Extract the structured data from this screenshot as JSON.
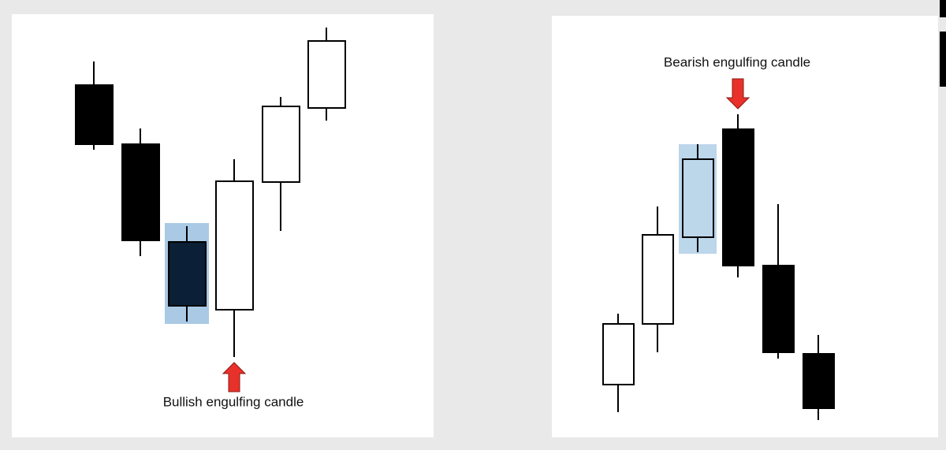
{
  "bullish_panel": {
    "label": "Bullish engulfing candle"
  },
  "bearish_panel": {
    "label": "Bearish engulfing candle"
  }
}
